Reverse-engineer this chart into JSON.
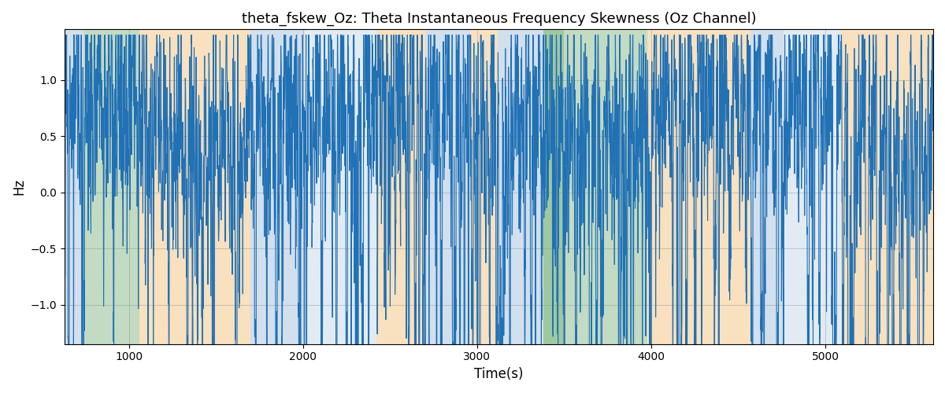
{
  "title": "theta_fskew_Oz: Theta Instantaneous Frequency Skewness (Oz Channel)",
  "xlabel": "Time(s)",
  "ylabel": "Hz",
  "xlim": [
    630,
    5620
  ],
  "ylim": [
    -1.35,
    1.45
  ],
  "yticks": [
    -1.0,
    -0.5,
    0.0,
    0.5,
    1.0
  ],
  "xticks": [
    1000,
    2000,
    3000,
    4000,
    5000
  ],
  "line_color": "#2171b5",
  "line_width": 0.8,
  "background_bands": [
    {
      "xmin": 630,
      "xmax": 740,
      "color": "#aec6df",
      "alpha": 0.55
    },
    {
      "xmin": 740,
      "xmax": 1060,
      "color": "#90bf90",
      "alpha": 0.55
    },
    {
      "xmin": 1060,
      "xmax": 1700,
      "color": "#f5c88a",
      "alpha": 0.55
    },
    {
      "xmin": 1700,
      "xmax": 2010,
      "color": "#aec6df",
      "alpha": 0.55
    },
    {
      "xmin": 2010,
      "xmax": 2420,
      "color": "#aec6df",
      "alpha": 0.35
    },
    {
      "xmin": 2420,
      "xmax": 2700,
      "color": "#f5c88a",
      "alpha": 0.55
    },
    {
      "xmin": 2700,
      "xmax": 2960,
      "color": "#aec6df",
      "alpha": 0.55
    },
    {
      "xmin": 2960,
      "xmax": 3120,
      "color": "#f5c88a",
      "alpha": 0.55
    },
    {
      "xmin": 3120,
      "xmax": 3380,
      "color": "#aec6df",
      "alpha": 0.55
    },
    {
      "xmin": 3380,
      "xmax": 3500,
      "color": "#90bf90",
      "alpha": 0.85
    },
    {
      "xmin": 3500,
      "xmax": 3980,
      "color": "#90bf90",
      "alpha": 0.55
    },
    {
      "xmin": 3980,
      "xmax": 4570,
      "color": "#f5c88a",
      "alpha": 0.55
    },
    {
      "xmin": 4570,
      "xmax": 4760,
      "color": "#aec6df",
      "alpha": 0.55
    },
    {
      "xmin": 4760,
      "xmax": 5090,
      "color": "#aec6df",
      "alpha": 0.35
    },
    {
      "xmin": 5090,
      "xmax": 5620,
      "color": "#f5c88a",
      "alpha": 0.55
    }
  ],
  "seed": 12345,
  "n_points": 5000,
  "t_start": 630,
  "t_end": 5620
}
